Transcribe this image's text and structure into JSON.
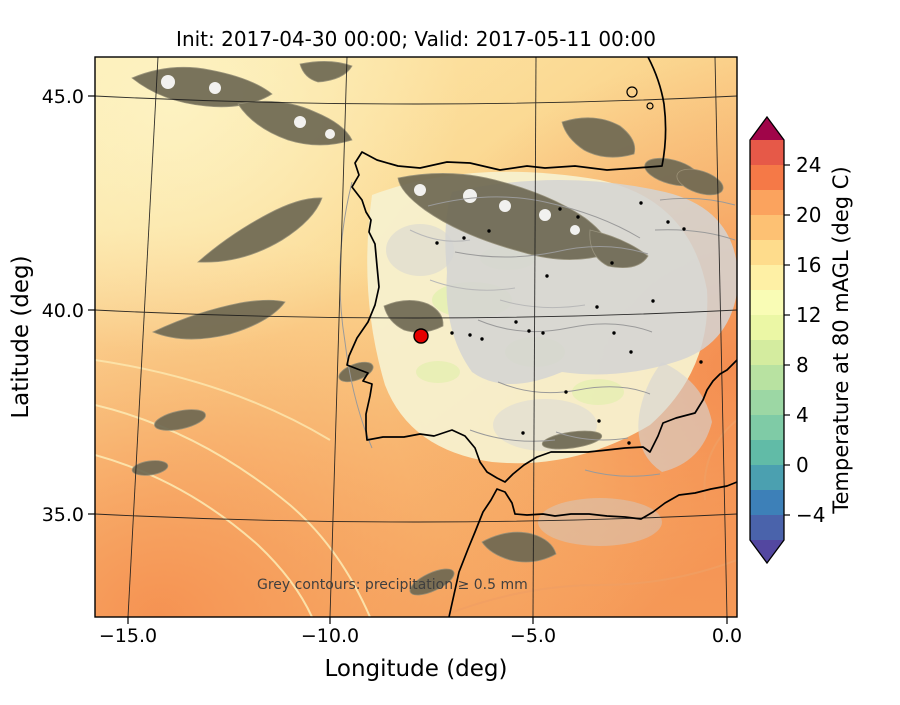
{
  "figure": {
    "title": "Init: 2017-04-30 00:00; Valid: 2017-05-11 00:00",
    "background_color": "#ffffff"
  },
  "axes": {
    "xlabel": "Longitude (deg)",
    "ylabel": "Latitude (deg)",
    "x_tick_labels": [
      "−15.0",
      "−10.0",
      "−5.0",
      "0.0"
    ],
    "y_tick_labels": [
      "45.0",
      "40.0",
      "35.0"
    ]
  },
  "colorbar": {
    "label": "Temperature at 80 mAGL (deg C)",
    "tick_labels": [
      "24",
      "20",
      "16",
      "12",
      "8",
      "4",
      "0",
      "−4"
    ],
    "band_colors_bottom_to_top": [
      "#4a63ab",
      "#3d80b8",
      "#4ba0b0",
      "#61bba7",
      "#7fcba6",
      "#9cd7a4",
      "#b8e2a1",
      "#d4ec9f",
      "#ebf7a5",
      "#f9fcb5",
      "#fef0a5",
      "#fedc8c",
      "#fdc173",
      "#fba35e",
      "#f57947",
      "#e65948"
    ],
    "under_color": "#5347a0",
    "over_color": "#a00549"
  },
  "map": {
    "annotation": "Grey contours: precipitation ≥ 0.5 mm",
    "marker": {
      "lon": -7.7,
      "lat": 39.4,
      "color": "#e50000"
    }
  },
  "chart_data": {
    "type": "heatmap",
    "subtype": "filled-contour-weather-map",
    "title": "Init: 2017-04-30 00:00; Valid: 2017-05-11 00:00",
    "init_time": "2017-04-30 00:00",
    "valid_time": "2017-05-11 00:00",
    "variable": "Temperature at 80 mAGL (deg C)",
    "xlabel": "Longitude (deg)",
    "ylabel": "Latitude (deg)",
    "x_ticks": [
      -15,
      -10,
      -5,
      0
    ],
    "y_ticks": [
      35,
      40,
      45
    ],
    "xlim": [
      -16,
      0.5
    ],
    "ylim": [
      33,
      46
    ],
    "colorbar_ticks_degC": [
      -4,
      0,
      4,
      8,
      12,
      16,
      20,
      24
    ],
    "contour_interval_degC": 2,
    "colormap": "Spectral reversed (purple/blue = cold, dark red = warm), with extend triangles",
    "overlay": "grey filled and line contours where precipitation ≥ 0.5 mm",
    "marker_point": {
      "lon": -7.7,
      "lat": 39.4
    },
    "region_shown": "Iberian Peninsula, Bay of Biscay, western Mediterranean, northern Morocco",
    "estimated_values": [
      {
        "region": "Atlantic NW of Iberia",
        "temp_degC": 12
      },
      {
        "region": "Atlantic west of Portugal",
        "temp_degC": 14
      },
      {
        "region": "Bay of Biscay / SW France",
        "temp_degC": 16
      },
      {
        "region": "Iberian interior plateau",
        "temp_degC": 10
      },
      {
        "region": "NE Spain (grey precipitation area)",
        "temp_degC": 10
      },
      {
        "region": "Gulf of Cadiz",
        "temp_degC": 18
      },
      {
        "region": "Alboran Sea / Strait of Gibraltar",
        "temp_degC": 18
      },
      {
        "region": "Mediterranean east of Spain",
        "temp_degC": 20
      },
      {
        "region": "North Africa (Morocco)",
        "temp_degC": 20
      }
    ]
  }
}
